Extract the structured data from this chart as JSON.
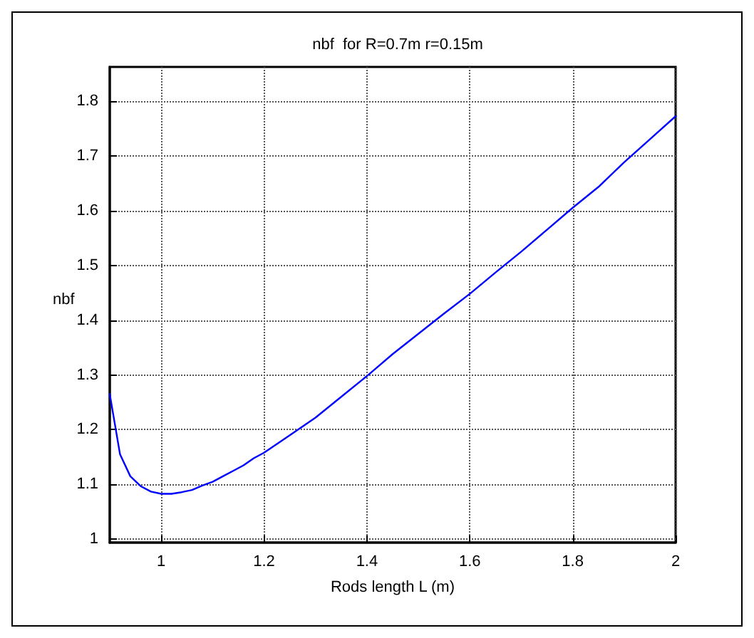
{
  "chart_data": {
    "type": "line",
    "title": "nbf  for R=0.7m r=0.15m",
    "xlabel": "Rods length L (m)",
    "ylabel": "nbf",
    "x": [
      0.9,
      0.92,
      0.94,
      0.96,
      0.98,
      1.0,
      1.02,
      1.04,
      1.06,
      1.08,
      1.1,
      1.12,
      1.14,
      1.16,
      1.18,
      1.2,
      1.25,
      1.3,
      1.35,
      1.4,
      1.45,
      1.5,
      1.55,
      1.6,
      1.65,
      1.7,
      1.75,
      1.8,
      1.85,
      1.9,
      1.95,
      2.0
    ],
    "series": [
      {
        "color": "#0000ff",
        "values": [
          1.265,
          1.155,
          1.115,
          1.097,
          1.087,
          1.083,
          1.083,
          1.086,
          1.09,
          1.098,
          1.105,
          1.115,
          1.125,
          1.135,
          1.148,
          1.158,
          1.19,
          1.222,
          1.26,
          1.298,
          1.338,
          1.375,
          1.412,
          1.448,
          1.487,
          1.525,
          1.565,
          1.605,
          1.643,
          1.688,
          1.73,
          1.772
        ]
      }
    ],
    "xlim": [
      0.9,
      2.0
    ],
    "xticks": [
      1,
      1.2,
      1.4,
      1.6,
      1.8,
      2
    ],
    "ylim": [
      0.994,
      1.862
    ],
    "yticks": [
      1,
      1.1,
      1.2,
      1.3,
      1.4,
      1.5,
      1.6,
      1.7,
      1.8
    ],
    "grid": true,
    "line_style": "solid",
    "marker": "none"
  }
}
